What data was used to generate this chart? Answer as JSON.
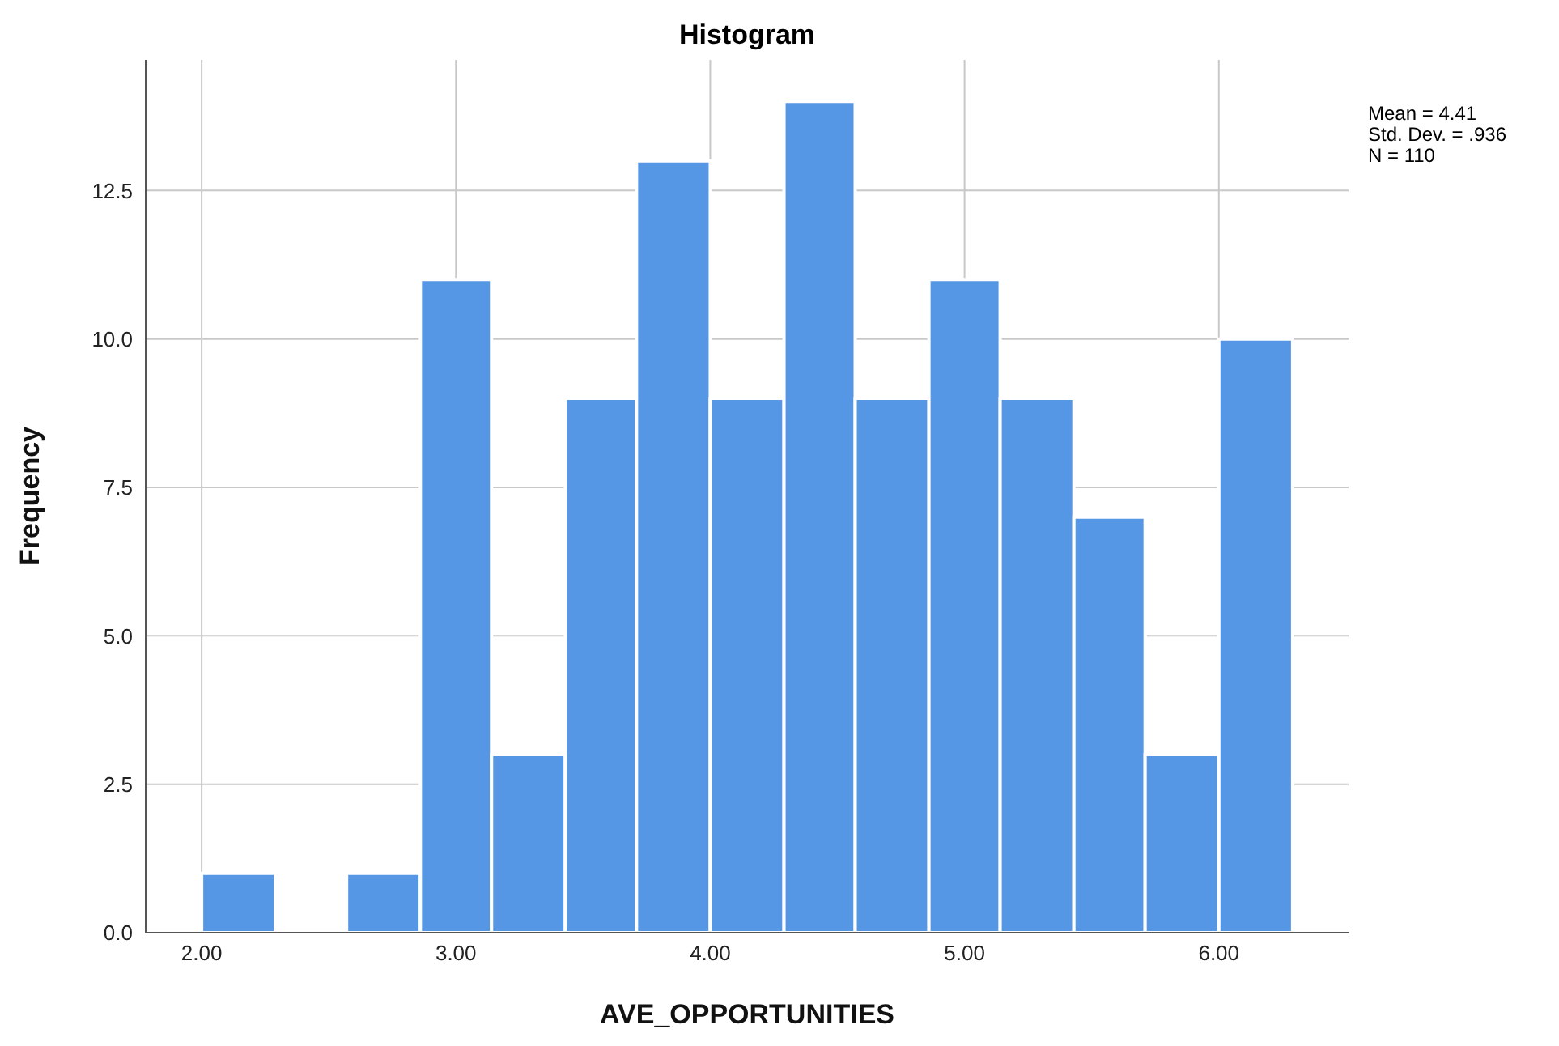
{
  "chart_data": {
    "type": "histogram",
    "title": "Histogram",
    "xlabel": "AVE_OPPORTUNITIES",
    "ylabel": "Frequency",
    "bins": [
      2,
      2.29,
      2.57,
      2.86,
      3.14,
      3.43,
      3.71,
      4,
      4.29,
      4.57,
      4.86,
      5.14,
      5.43,
      5.71,
      6,
      6.29
    ],
    "values": [
      1,
      0,
      1,
      11,
      3,
      9,
      13,
      9,
      14,
      9,
      11,
      9,
      7,
      3,
      10
    ],
    "color": "#5596e5",
    "xlim": [
      1.78,
      6.51
    ],
    "xticks": [
      {
        "value": 2,
        "label": "2.00"
      },
      {
        "value": 3,
        "label": "3.00"
      },
      {
        "value": 4,
        "label": "4.00"
      },
      {
        "value": 5,
        "label": "5.00"
      },
      {
        "value": 6,
        "label": "6.00"
      }
    ],
    "ylim": [
      0,
      14.7
    ],
    "yticks": [
      {
        "value": 0,
        "label": "0.0"
      },
      {
        "value": 2.5,
        "label": "2.5"
      },
      {
        "value": 5,
        "label": "5.0"
      },
      {
        "value": 7.5,
        "label": "7.5"
      },
      {
        "value": 10,
        "label": "10.0"
      },
      {
        "value": 12.5,
        "label": "12.5"
      }
    ],
    "grid": true,
    "annotations": [
      "Mean = 4.41",
      "Std. Dev. = .936",
      "N = 110"
    ]
  }
}
